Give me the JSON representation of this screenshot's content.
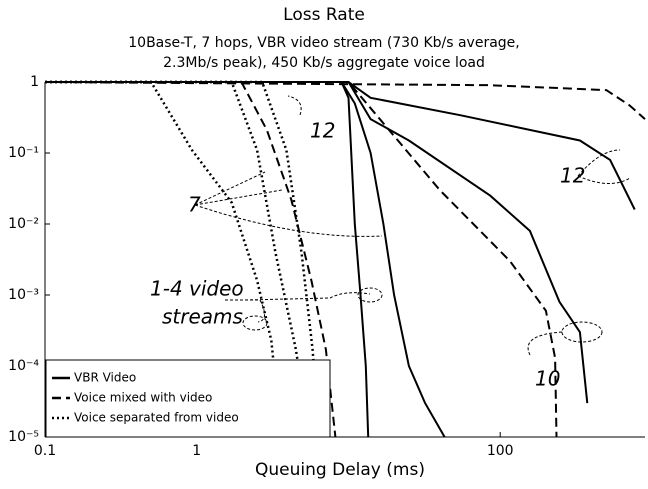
{
  "chart_data": {
    "type": "line",
    "title": "Loss Rate",
    "subtitle": [
      "10Base-T, 7 hops, VBR video stream (730 Kb/s average,",
      "2.3Mb/s peak), 450 Kb/s aggregate voice load"
    ],
    "x_label": "Queuing Delay (ms)",
    "xlog": true,
    "ylog": true,
    "xlim": [
      0.1,
      900
    ],
    "ylim": [
      1e-05,
      1
    ],
    "xticks": [
      0.1,
      1,
      100
    ],
    "yticks": [
      {
        "value": 1e-05,
        "label": "10⁻⁵"
      },
      {
        "value": 0.0001,
        "label": "10⁻⁴"
      },
      {
        "value": 0.001,
        "label": "10⁻³"
      },
      {
        "value": 0.01,
        "label": "10⁻²"
      },
      {
        "value": 0.1,
        "label": "10⁻¹"
      },
      1
    ],
    "legend": "lower left",
    "series": [
      {
        "name": "VBR Video",
        "color": "#000000",
        "style": "solid",
        "curves": [
          {
            "x": [
              0.1,
              9,
              10,
              11,
              12,
              13,
              13.5
            ],
            "values": [
              1,
              1,
              0.6,
              0.01,
              0.001,
              0.0001,
              1e-05
            ]
          },
          {
            "x": [
              0.1,
              9,
              11,
              14,
              17,
              20,
              25,
              32,
              43
            ],
            "values": [
              1,
              1,
              0.5,
              0.1,
              0.01,
              0.001,
              0.0001,
              3e-05,
              1e-05
            ]
          },
          {
            "x": [
              0.1,
              10,
              14,
              25,
              86,
              157,
              246,
              335,
              375
            ],
            "values": [
              1,
              1,
              0.3,
              0.15,
              0.025,
              0.008,
              0.0008,
              0.0003,
              3e-05
            ]
          },
          {
            "x": [
              0.1,
              10,
              14,
              55,
              335,
              530,
              770
            ],
            "values": [
              1,
              1,
              0.6,
              0.34,
              0.15,
              0.08,
              0.016
            ]
          }
        ]
      },
      {
        "name": "Voice mixed with video",
        "color": "#000000",
        "style": "dashed",
        "curves": [
          {
            "x": [
              0.1,
              1.97,
              2.9,
              4.2,
              5.7,
              7.1,
              8.2
            ],
            "values": [
              1,
              1,
              0.21,
              0.022,
              0.0016,
              0.00017,
              1e-05
            ]
          },
          {
            "x": [
              0.1,
              10,
              40,
              116,
              200,
              230,
              235
            ],
            "values": [
              1,
              1,
              0.03,
              0.003,
              0.0006,
              0.00013,
              1e-05
            ]
          },
          {
            "x": [
              0.1,
              86,
              500,
              710,
              900
            ],
            "values": [
              1,
              0.9,
              0.77,
              0.47,
              0.3
            ]
          }
        ]
      },
      {
        "name": "Voice separated from video",
        "color": "#000000",
        "style": "dotted",
        "curves": [
          {
            "x": [
              0.1,
              0.5,
              0.93,
              1.7,
              2.5,
              3.1,
              3.6
            ],
            "values": [
              1,
              1,
              0.11,
              0.02,
              0.0016,
              0.00023,
              1e-05
            ]
          },
          {
            "x": [
              0.1,
              1.7,
              2.5,
              3.3,
              4.5,
              5.5
            ],
            "values": [
              1,
              1,
              0.11,
              0.004,
              0.00017,
              1e-05
            ]
          },
          {
            "x": [
              0.1,
              2.7,
              3.9,
              4.9,
              5.8,
              6.4
            ],
            "values": [
              1,
              1,
              0.11,
              0.004,
              0.00017,
              1e-05
            ]
          }
        ]
      }
    ],
    "annotations": [
      "12",
      "7",
      "1-4 video",
      "streams",
      "12",
      "10"
    ]
  }
}
